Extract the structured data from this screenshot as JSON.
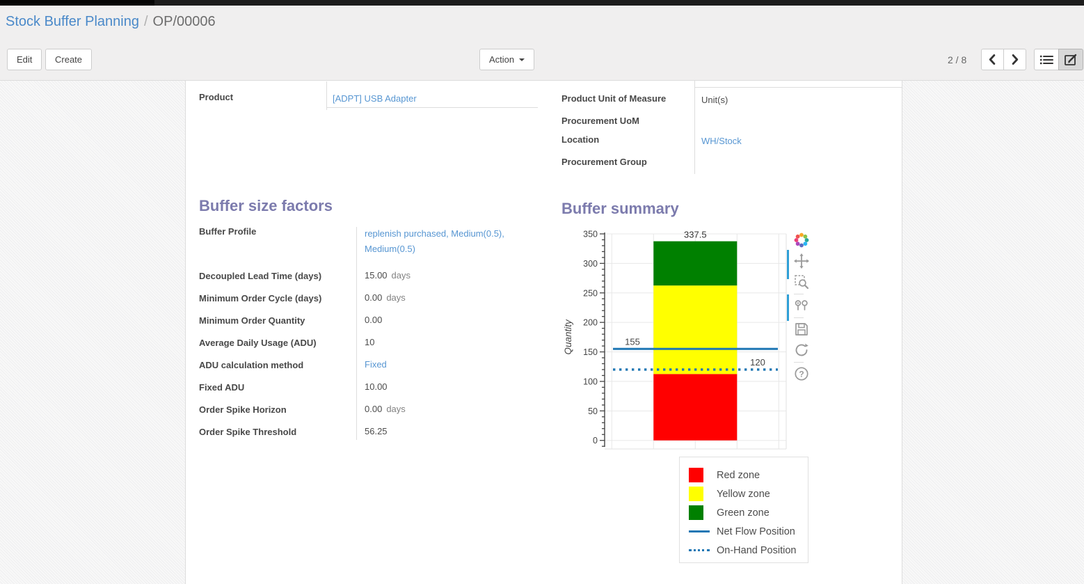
{
  "breadcrumb": {
    "parent": "Stock Buffer Planning",
    "separator": "/",
    "current": "OP/00006"
  },
  "control_panel": {
    "edit_label": "Edit",
    "create_label": "Create",
    "action_label": "Action",
    "pager_text": "2 / 8"
  },
  "form": {
    "product_row": {
      "label": "Product",
      "value": "[ADPT] USB Adapter"
    },
    "info_rows": [
      {
        "label": "Product Unit of Measure",
        "value": "Unit(s)"
      },
      {
        "label": "Procurement UoM",
        "value": ""
      },
      {
        "label": "Location",
        "value": "WH/Stock"
      },
      {
        "label": "Procurement Group",
        "value": ""
      }
    ],
    "buffer_factors": {
      "title": "Buffer size factors",
      "rows": [
        {
          "label": "Buffer Profile",
          "value": "replenish purchased, Medium(0.5), Medium(0.5)",
          "unit": ""
        },
        {
          "label": "Decoupled Lead Time (days)",
          "value": "15.00",
          "unit": "days"
        },
        {
          "label": "Minimum Order Cycle (days)",
          "value": "0.00",
          "unit": "days"
        },
        {
          "label": "Minimum Order Quantity",
          "value": "0.00",
          "unit": ""
        },
        {
          "label": "Average Daily Usage (ADU)",
          "value": "10",
          "unit": ""
        },
        {
          "label": "ADU calculation method",
          "value": "Fixed",
          "unit": ""
        },
        {
          "label": "Fixed ADU",
          "value": "10.00",
          "unit": ""
        },
        {
          "label": "Order Spike Horizon",
          "value": "0.00",
          "unit": "days"
        },
        {
          "label": "Order Spike Threshold",
          "value": "56.25",
          "unit": ""
        }
      ]
    }
  },
  "chart_data": {
    "type": "bar",
    "stacked": true,
    "title": "Buffer summary",
    "ylabel": "Quantity",
    "categories": [
      ""
    ],
    "ylim": [
      0,
      350
    ],
    "ytick_step": 50,
    "yminor_step": 10,
    "grid": true,
    "series": [
      {
        "name": "Red zone",
        "color": "#ff0000",
        "values": [
          112.5
        ],
        "top": 112.5,
        "label": "112.5"
      },
      {
        "name": "Yellow zone",
        "color": "#ffff00",
        "values": [
          150
        ],
        "top": 262.5,
        "label": "262.5"
      },
      {
        "name": "Green zone",
        "color": "#008000",
        "values": [
          75
        ],
        "top": 337.5,
        "label": "337.5"
      }
    ],
    "reference_lines": [
      {
        "name": "Net Flow Position",
        "value": 155,
        "label": "155",
        "style": "solid",
        "color": "#1f77b4",
        "label_align": "left"
      },
      {
        "name": "On-Hand Position",
        "value": 120,
        "label": "120",
        "style": "dotted",
        "color": "#1f77b4",
        "label_align": "right"
      }
    ],
    "legend_position": "bottom-right",
    "legend_items": [
      {
        "label": "Red zone",
        "swatch": "square",
        "color": "#ff0000"
      },
      {
        "label": "Yellow zone",
        "swatch": "square",
        "color": "#ffff00"
      },
      {
        "label": "Green zone",
        "swatch": "square",
        "color": "#008000"
      },
      {
        "label": "Net Flow Position",
        "swatch": "line-solid",
        "color": "#1f77b4"
      },
      {
        "label": "On-Hand Position",
        "swatch": "line-dotted",
        "color": "#1f77b4"
      }
    ],
    "modebar_icons": [
      "plotly-logo-icon",
      "pan-icon",
      "zoom-box-icon",
      "compare-hover-icon",
      "save-icon",
      "reset-axes-icon",
      "help-icon"
    ]
  },
  "colors": {
    "link": "#5796d2",
    "breadcrumb_link": "#4a89c9",
    "heading": "#7c7bad",
    "accent_blue": "#1f77b4",
    "red_zone": "#ff0000",
    "yellow_zone": "#ffff00",
    "green_zone": "#008000"
  }
}
